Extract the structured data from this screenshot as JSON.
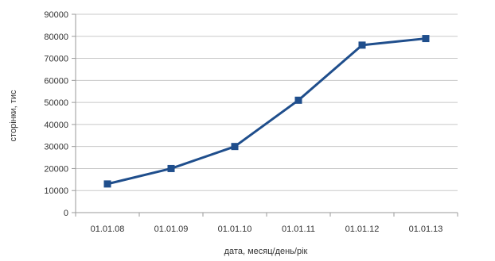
{
  "chart_data": {
    "type": "line",
    "title": "",
    "xlabel": "дата, месяц/день/рік",
    "ylabel": "сторінки, тис",
    "categories": [
      "01.01.08",
      "01.01.09",
      "01.01.10",
      "01.01.11",
      "01.01.12",
      "01.01.13"
    ],
    "series": [
      {
        "values": [
          13000,
          20000,
          30000,
          51000,
          76000,
          79000
        ]
      }
    ],
    "ylim": [
      0,
      90000
    ],
    "yticks": [
      0,
      10000,
      20000,
      30000,
      40000,
      50000,
      60000,
      70000,
      80000,
      90000
    ],
    "grid": true,
    "legend": "none",
    "colors": {
      "series": "#1f4e8c",
      "grid": "#c8c8c8",
      "axis": "#9a9a9a"
    }
  }
}
